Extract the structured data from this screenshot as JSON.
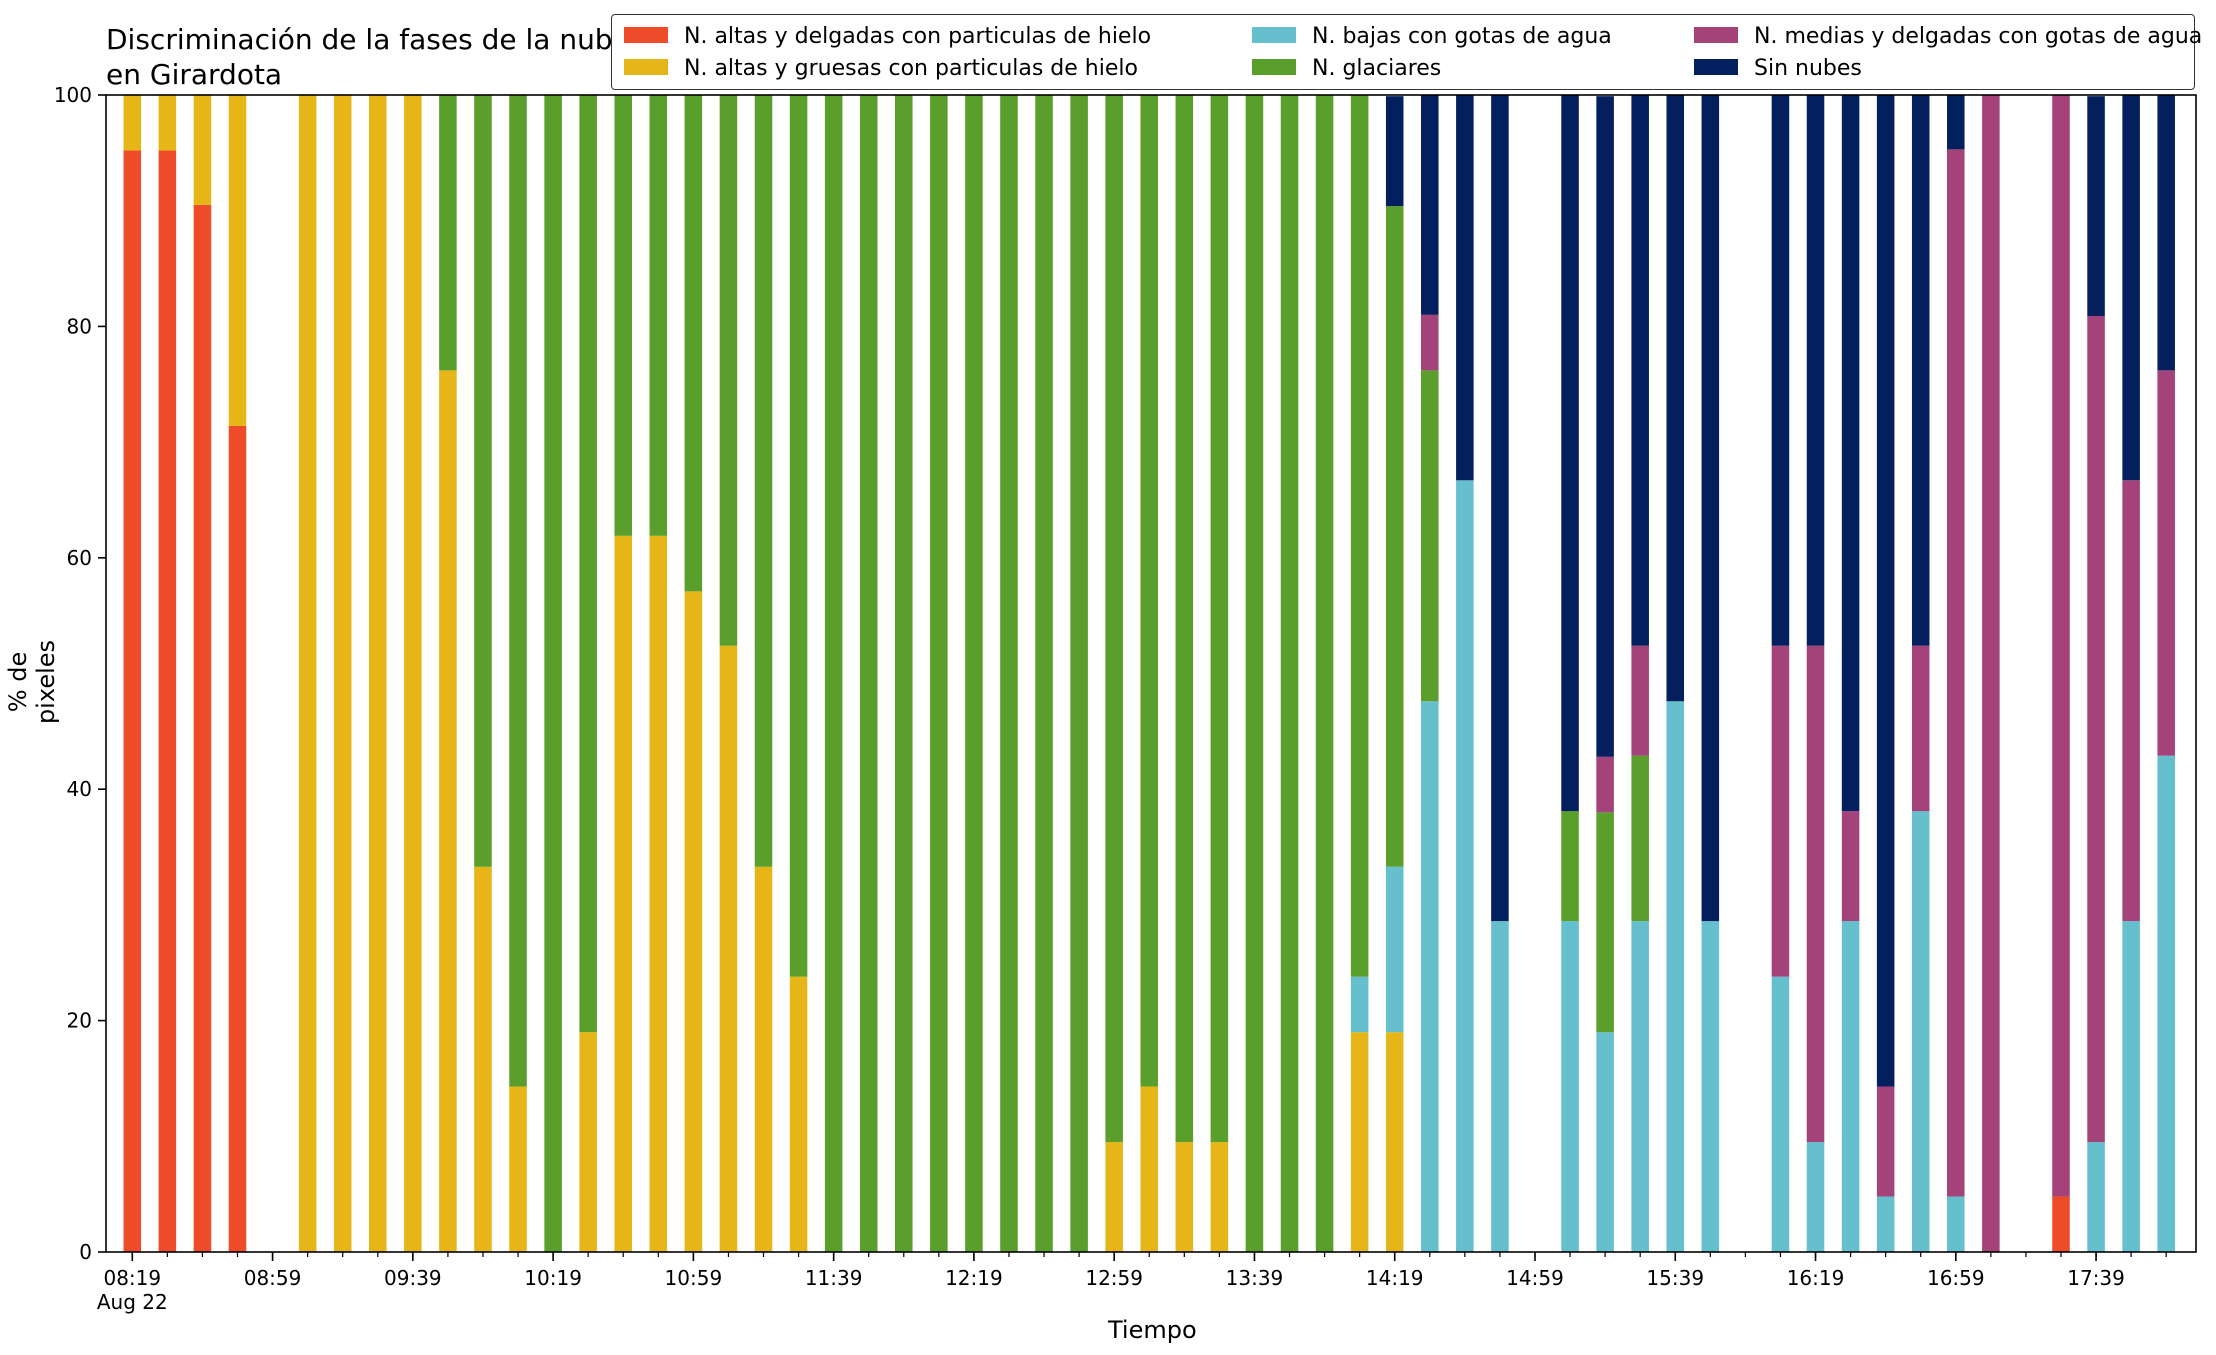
{
  "colors": {
    "ice_thin": "#ee4b2b",
    "ice_thick": "#e6b619",
    "water_low": "#65bfcc",
    "glacier": "#5a9e2b",
    "water_mid_thin": "#a4437a",
    "no_cloud": "#041f5e"
  },
  "chart_data": {
    "type": "bar",
    "stacked": true,
    "title": "Discriminación de la fases de la nube en Girardota",
    "xlabel": "Tiempo",
    "ylabel": "% de pixeles",
    "ylim": [
      0,
      100
    ],
    "yticks": [
      0,
      20,
      40,
      60,
      80,
      100
    ],
    "grid": false,
    "legend_placement": "top-right",
    "xticks": [
      {
        "pos": 0,
        "label": "08:19",
        "sublabel": "Aug 22"
      },
      {
        "pos": 4,
        "label": "08:59"
      },
      {
        "pos": 8,
        "label": "09:39"
      },
      {
        "pos": 12,
        "label": "10:19"
      },
      {
        "pos": 16,
        "label": "10:59"
      },
      {
        "pos": 20,
        "label": "11:39"
      },
      {
        "pos": 24,
        "label": "12:19"
      },
      {
        "pos": 28,
        "label": "12:59"
      },
      {
        "pos": 32,
        "label": "13:39"
      },
      {
        "pos": 36,
        "label": "14:19"
      },
      {
        "pos": 40,
        "label": "14:59"
      },
      {
        "pos": 44,
        "label": "15:39"
      },
      {
        "pos": 48,
        "label": "16:19"
      },
      {
        "pos": 52,
        "label": "16:59"
      },
      {
        "pos": 56,
        "label": "17:39"
      }
    ],
    "categories": [
      "08:19",
      "08:29",
      "08:39",
      "08:49",
      "08:59",
      "09:09",
      "09:19",
      "09:29",
      "09:39",
      "09:49",
      "09:59",
      "10:09",
      "10:19",
      "10:29",
      "10:39",
      "10:49",
      "10:59",
      "11:09",
      "11:19",
      "11:29",
      "11:39",
      "11:49",
      "11:59",
      "12:09",
      "12:19",
      "12:29",
      "12:39",
      "12:49",
      "12:59",
      "13:09",
      "13:19",
      "13:29",
      "13:39",
      "13:49",
      "13:59",
      "14:09",
      "14:19",
      "14:29",
      "14:39",
      "14:49",
      "14:59",
      "15:09",
      "15:19",
      "15:29",
      "15:39",
      "15:49",
      "15:59",
      "16:09",
      "16:19",
      "16:29",
      "16:39",
      "16:49",
      "16:59",
      "17:09",
      "17:19",
      "17:29",
      "17:39",
      "17:49",
      "17:59"
    ],
    "series": [
      {
        "name": "N. altas y delgadas con particulas de hielo",
        "color_key": "ice_thin",
        "values": [
          95.2,
          95.2,
          90.5,
          71.4,
          0,
          0,
          0,
          0,
          0,
          0,
          0,
          0,
          0,
          0,
          0,
          0,
          0,
          0,
          0,
          0,
          0,
          0,
          0,
          0,
          0,
          0,
          0,
          0,
          0,
          0,
          0,
          0,
          0,
          0,
          0,
          0,
          0,
          0,
          0,
          0,
          0,
          0,
          0,
          0,
          0,
          0,
          0,
          0,
          0,
          0,
          0,
          0,
          0,
          0,
          0,
          4.8,
          0,
          0,
          0
        ]
      },
      {
        "name": "N. altas y gruesas con particulas de hielo",
        "color_key": "ice_thick",
        "values": [
          4.8,
          4.8,
          9.5,
          28.6,
          0,
          100,
          100,
          100,
          100,
          76.2,
          33.3,
          14.3,
          0,
          19,
          61.9,
          61.9,
          57.1,
          52.4,
          33.3,
          23.8,
          0,
          0,
          0,
          0,
          0,
          0,
          0,
          0,
          9.5,
          14.3,
          9.5,
          9.5,
          0,
          0,
          0,
          19,
          19,
          0,
          0,
          0,
          0,
          0,
          0,
          0,
          0,
          0,
          0,
          0,
          0,
          0,
          0,
          0,
          0,
          0,
          0,
          0,
          0,
          0,
          0
        ]
      },
      {
        "name": "N. bajas con gotas de agua",
        "color_key": "water_low",
        "values": [
          0,
          0,
          0,
          0,
          0,
          0,
          0,
          0,
          0,
          0,
          0,
          0,
          0,
          0,
          0,
          0,
          0,
          0,
          0,
          0,
          0,
          0,
          0,
          0,
          0,
          0,
          0,
          0,
          0,
          0,
          0,
          0,
          0,
          0,
          0,
          4.8,
          14.3,
          47.6,
          66.7,
          28.6,
          0,
          28.6,
          19,
          28.6,
          47.6,
          28.6,
          0,
          23.8,
          9.5,
          28.6,
          4.8,
          38.1,
          4.8,
          0,
          0,
          0,
          9.5,
          28.6,
          42.9
        ]
      },
      {
        "name": "N. glaciares",
        "color_key": "glacier",
        "values": [
          0,
          0,
          0,
          0,
          0,
          0,
          0,
          0,
          0,
          23.8,
          66.7,
          85.7,
          100,
          81,
          38.1,
          38.1,
          42.9,
          47.6,
          66.7,
          76.2,
          100,
          100,
          100,
          100,
          100,
          100,
          100,
          100,
          90.5,
          85.7,
          90.5,
          90.5,
          100,
          100,
          100,
          76.2,
          57.1,
          28.6,
          0,
          0,
          0,
          9.5,
          19,
          14.3,
          0,
          0,
          0,
          0,
          0,
          0,
          0,
          0,
          0,
          0,
          0,
          0,
          0,
          0,
          0
        ]
      },
      {
        "name": "N. medias y delgadas con gotas de agua",
        "color_key": "water_mid_thin",
        "values": [
          0,
          0,
          0,
          0,
          0,
          0,
          0,
          0,
          0,
          0,
          0,
          0,
          0,
          0,
          0,
          0,
          0,
          0,
          0,
          0,
          0,
          0,
          0,
          0,
          0,
          0,
          0,
          0,
          0,
          0,
          0,
          0,
          0,
          0,
          0,
          0,
          0,
          4.8,
          0,
          0,
          0,
          0,
          4.8,
          9.5,
          0,
          0,
          0,
          28.6,
          42.9,
          9.5,
          9.5,
          14.3,
          90.5,
          100,
          0,
          95.2,
          71.4,
          38.1,
          33.3
        ]
      },
      {
        "name": "Sin nubes",
        "color_key": "no_cloud",
        "values": [
          0,
          0,
          0,
          0,
          0,
          0,
          0,
          0,
          0,
          0,
          0,
          0,
          0,
          0,
          0,
          0,
          0,
          0,
          0,
          0,
          0,
          0,
          0,
          0,
          0,
          0,
          0,
          0,
          0,
          0,
          0,
          0,
          0,
          0,
          0,
          0,
          9.5,
          19,
          33.3,
          71.4,
          0,
          61.9,
          57.1,
          47.6,
          52.4,
          71.4,
          0,
          47.6,
          47.6,
          61.9,
          85.7,
          47.6,
          4.8,
          0,
          0,
          0,
          19,
          33.3,
          23.8
        ]
      }
    ]
  }
}
